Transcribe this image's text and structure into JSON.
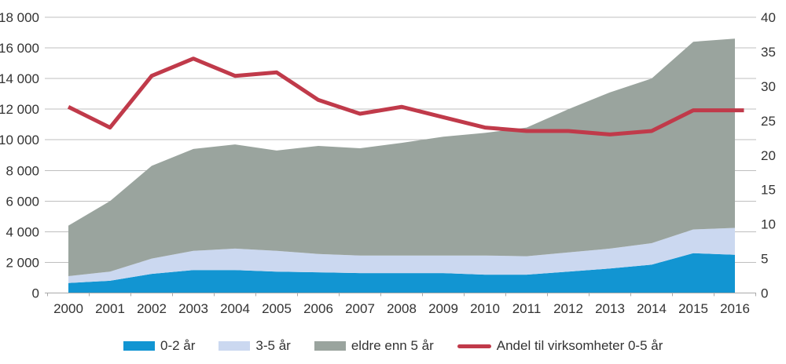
{
  "chart_data": {
    "type": "area",
    "subtype": "stacked-area-with-percent-line",
    "categories": [
      "2000",
      "2001",
      "2002",
      "2003",
      "2004",
      "2005",
      "2006",
      "2007",
      "2008",
      "2009",
      "2010",
      "2011",
      "2012",
      "2013",
      "2014",
      "2015",
      "2016"
    ],
    "series": [
      {
        "name": "0-2 år",
        "type": "area",
        "stacked": true,
        "axis": "left",
        "color": "#1295d2",
        "values": [
          650,
          800,
          1250,
          1500,
          1500,
          1400,
          1350,
          1300,
          1300,
          1300,
          1200,
          1200,
          1400,
          1600,
          1850,
          2600,
          2500
        ]
      },
      {
        "name": "3-5 år",
        "type": "area",
        "stacked": true,
        "axis": "left",
        "color": "#cbd8f0",
        "values": [
          450,
          600,
          1000,
          1250,
          1400,
          1350,
          1200,
          1150,
          1150,
          1150,
          1250,
          1200,
          1250,
          1300,
          1400,
          1550,
          1750
        ]
      },
      {
        "name": "eldre enn 5 år",
        "type": "area",
        "stacked": true,
        "axis": "left",
        "color": "#9aa49e",
        "values": [
          3300,
          4600,
          6050,
          6650,
          6800,
          6550,
          7050,
          7000,
          7350,
          7750,
          8000,
          8400,
          9350,
          10200,
          10750,
          12250,
          12350
        ]
      },
      {
        "name": "Andel til virksomheter 0-5 år",
        "type": "line",
        "stacked": false,
        "axis": "right",
        "color": "#c03a4a",
        "values": [
          27,
          24,
          31.5,
          34,
          31.5,
          32,
          28,
          26,
          27,
          25.5,
          24,
          23.5,
          23.5,
          23,
          23.5,
          26.5,
          26.5
        ]
      }
    ],
    "left_axis": {
      "min": 0,
      "max": 18000,
      "step": 2000,
      "tick_labels": [
        "0",
        "2 000",
        "4 000",
        "6 000",
        "8 000",
        "10 000",
        "12 000",
        "14 000",
        "16 000",
        "18 000"
      ]
    },
    "right_axis": {
      "min": 0,
      "max": 40,
      "step": 5,
      "tick_labels": [
        "0",
        "5",
        "10",
        "15",
        "20",
        "25",
        "30",
        "35",
        "40"
      ]
    },
    "grid": true,
    "legend_position": "bottom",
    "style": {
      "grid_color": "#bfbfbf",
      "axis_color": "#a9a9a9",
      "text_color": "#333333",
      "line_width": 5
    }
  }
}
